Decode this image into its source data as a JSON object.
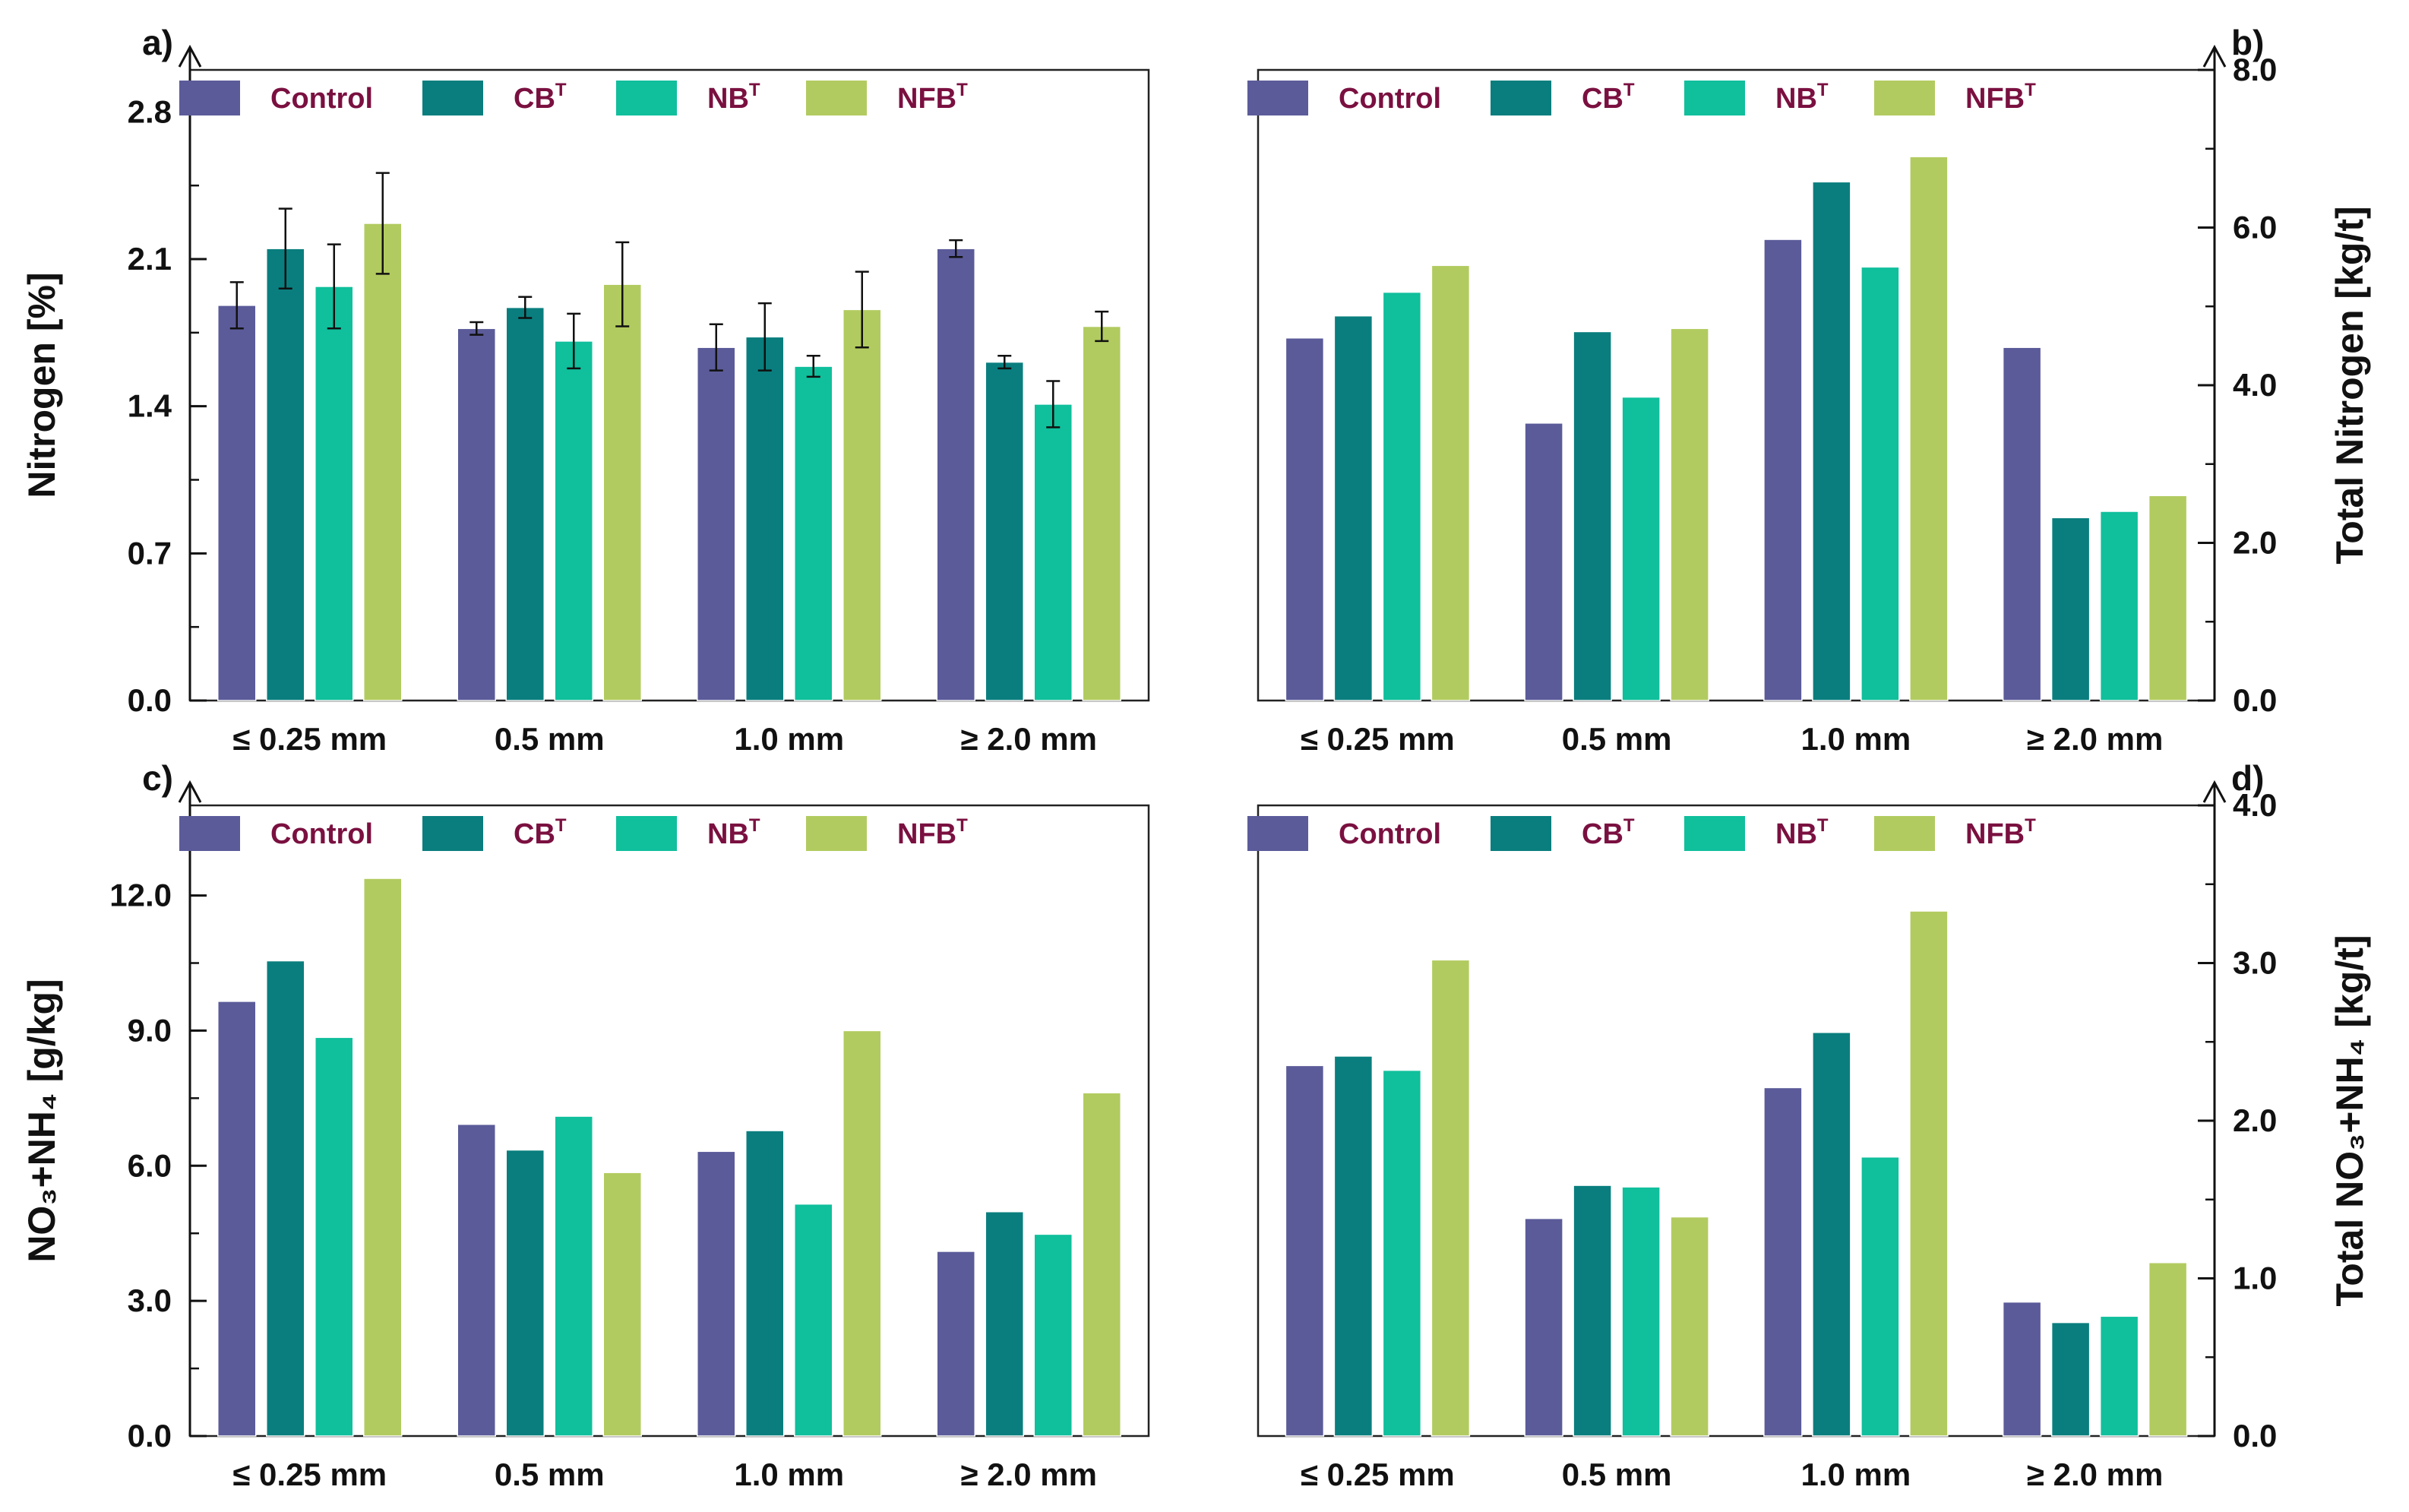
{
  "colors": {
    "Control": "#5b5b9a",
    "CBT": "#0a7e7e",
    "NBT": "#10bf9c",
    "NFBT": "#b2cb60",
    "legend_text": "#7a1040"
  },
  "legend": [
    {
      "key": "Control",
      "label": "Control",
      "sup": ""
    },
    {
      "key": "CBT",
      "label": "CB",
      "sup": "T"
    },
    {
      "key": "NBT",
      "label": "NB",
      "sup": "T"
    },
    {
      "key": "NFBT",
      "label": "NFB",
      "sup": "T"
    }
  ],
  "chart_data": [
    {
      "type": "bar",
      "panel": "a)",
      "ylabel": "Nitrogen [%]",
      "y_side": "left",
      "ylim": [
        0,
        3.0
      ],
      "yticks": [
        "0.0",
        "0.7",
        "1.4",
        "2.1",
        "2.8"
      ],
      "ytick_values": [
        0,
        0.7,
        1.4,
        2.1,
        2.8
      ],
      "minor_step": 0.35,
      "categories": [
        "≤ 0.25 mm",
        "0.5 mm",
        "1.0 mm",
        "≥ 2.0 mm"
      ],
      "series": [
        {
          "name": "Control",
          "values": [
            1.88,
            1.77,
            1.68,
            2.15
          ],
          "errors": [
            0.11,
            0.03,
            0.11,
            0.04
          ]
        },
        {
          "name": "CBT",
          "values": [
            2.15,
            1.87,
            1.73,
            1.61
          ],
          "errors": [
            0.19,
            0.05,
            0.16,
            0.03
          ]
        },
        {
          "name": "NBT",
          "values": [
            1.97,
            1.71,
            1.59,
            1.41
          ],
          "errors": [
            0.2,
            0.13,
            0.05,
            0.11
          ]
        },
        {
          "name": "NFBT",
          "values": [
            2.27,
            1.98,
            1.86,
            1.78
          ],
          "errors": [
            0.24,
            0.2,
            0.18,
            0.07
          ]
        }
      ]
    },
    {
      "type": "bar",
      "panel": "b)",
      "ylabel": "Total Nitrogen [kg/t]",
      "y_side": "right",
      "ylim": [
        0,
        8.0
      ],
      "yticks": [
        "0.0",
        "2.0",
        "4.0",
        "6.0",
        "8.0"
      ],
      "ytick_values": [
        0,
        2,
        4,
        6,
        8
      ],
      "minor_step": 1.0,
      "categories": [
        "≤ 0.25 mm",
        "0.5 mm",
        "1.0 mm",
        "≥ 2.0 mm"
      ],
      "series": [
        {
          "name": "Control",
          "values": [
            4.6,
            3.52,
            5.85,
            4.48
          ]
        },
        {
          "name": "CBT",
          "values": [
            4.88,
            4.68,
            6.58,
            2.32
          ]
        },
        {
          "name": "NBT",
          "values": [
            5.18,
            3.85,
            5.5,
            2.4
          ]
        },
        {
          "name": "NFBT",
          "values": [
            5.52,
            4.72,
            6.9,
            2.6
          ]
        }
      ]
    },
    {
      "type": "bar",
      "panel": "c)",
      "ylabel": "NO₃+NH₄ [g/kg]",
      "y_side": "left",
      "ylim": [
        0,
        14.0
      ],
      "yticks": [
        "0.0",
        "3.0",
        "6.0",
        "9.0",
        "12.0"
      ],
      "ytick_values": [
        0,
        3,
        6,
        9,
        12
      ],
      "minor_step": 1.5,
      "categories": [
        "≤ 0.25 mm",
        "0.5 mm",
        "1.0 mm",
        "≥ 2.0 mm"
      ],
      "series": [
        {
          "name": "Control",
          "values": [
            9.65,
            6.92,
            6.32,
            4.1
          ]
        },
        {
          "name": "CBT",
          "values": [
            10.55,
            6.35,
            6.78,
            4.98
          ]
        },
        {
          "name": "NBT",
          "values": [
            8.85,
            7.1,
            5.15,
            4.48
          ]
        },
        {
          "name": "NFBT",
          "values": [
            12.38,
            5.85,
            9.0,
            7.62
          ]
        }
      ]
    },
    {
      "type": "bar",
      "panel": "d)",
      "ylabel": "Total NO₃+NH₄ [kg/t]",
      "y_side": "right",
      "ylim": [
        0,
        4.0
      ],
      "yticks": [
        "0.0",
        "1.0",
        "2.0",
        "3.0",
        "4.0"
      ],
      "ytick_values": [
        0,
        1,
        2,
        3,
        4
      ],
      "minor_step": 0.5,
      "categories": [
        "≤ 0.25 mm",
        "0.5 mm",
        "1.0 mm",
        "≥ 2.0 mm"
      ],
      "series": [
        {
          "name": "Control",
          "values": [
            2.35,
            1.38,
            2.21,
            0.85
          ]
        },
        {
          "name": "CBT",
          "values": [
            2.41,
            1.59,
            2.56,
            0.72
          ]
        },
        {
          "name": "NBT",
          "values": [
            2.32,
            1.58,
            1.77,
            0.76
          ]
        },
        {
          "name": "NFBT",
          "values": [
            3.02,
            1.39,
            3.33,
            1.1
          ]
        }
      ]
    }
  ]
}
